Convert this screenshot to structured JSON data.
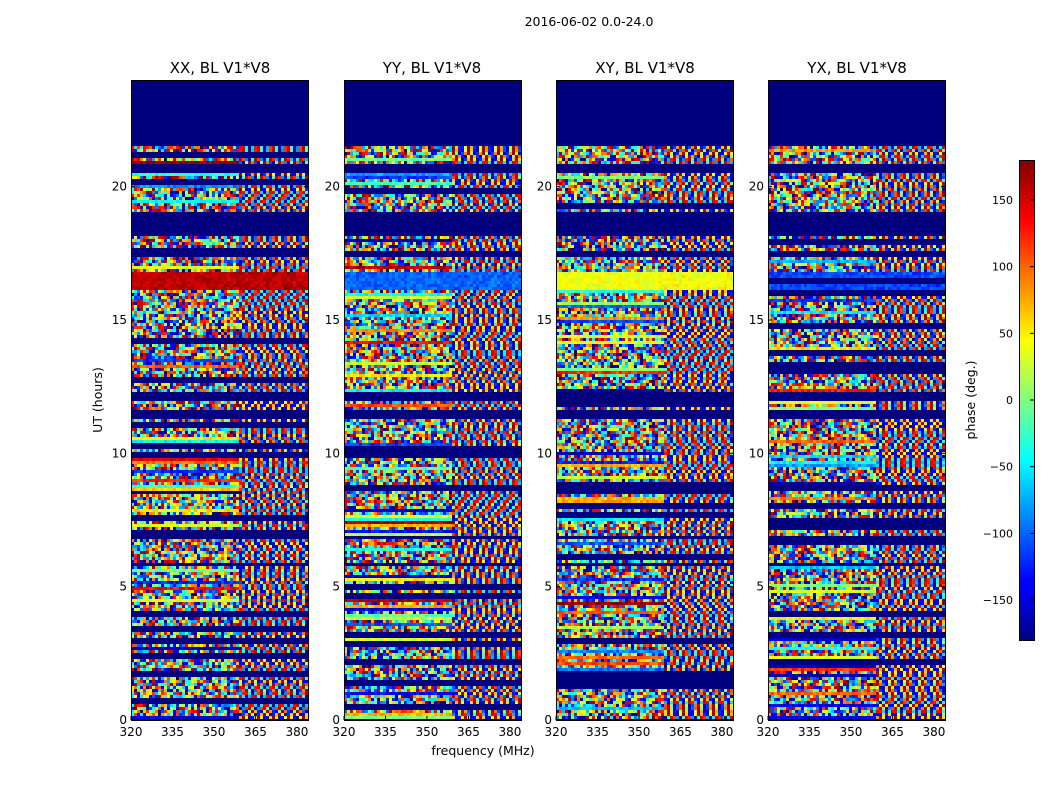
{
  "figure": {
    "suptitle": "2016-06-02 0.0-24.0"
  },
  "colors": {
    "no_data": "#00007f",
    "frame": "#000000",
    "colormap": "jet"
  },
  "chart_data": {
    "type": "heatmap",
    "shared": {
      "xlabel": "frequency (MHz)",
      "ylabel": "UT (hours)",
      "xlim": [
        320,
        384
      ],
      "ylim": [
        0,
        24
      ],
      "xticks": [
        320,
        335,
        350,
        365,
        380
      ],
      "yticks": [
        0,
        5,
        10,
        15,
        20
      ],
      "colorbar": {
        "label": "phase (deg.)",
        "range": [
          -180,
          180
        ],
        "ticks": [
          "150",
          "100",
          "50",
          "0",
          "−50",
          "−100",
          "−150"
        ],
        "tick_values": [
          150,
          100,
          50,
          0,
          -50,
          -100,
          -150
        ]
      },
      "no_data_intervals_ut": [
        [
          21.5,
          24.0
        ],
        [
          20.55,
          20.85
        ],
        [
          18.1,
          19.0
        ],
        [
          17.35,
          17.55
        ],
        [
          12.0,
          12.3
        ],
        [
          11.3,
          11.6
        ],
        [
          6.8,
          6.95
        ],
        [
          5.75,
          5.9
        ]
      ],
      "frequency_break_mhz": 359
    },
    "panels": [
      {
        "title": "XX, BL V1*V8",
        "feature_band_ut": [
          16.1,
          16.8
        ],
        "feature_phase_deg": 160
      },
      {
        "title": "YY, BL V1*V8",
        "feature_band_ut": [
          16.1,
          16.8
        ],
        "feature_phase_deg": -100
      },
      {
        "title": "XY, BL V1*V8",
        "feature_band_ut": [
          16.1,
          16.8
        ],
        "feature_phase_deg": 40
      },
      {
        "title": "YX, BL V1*V8",
        "feature_band_ut": [
          16.1,
          16.8
        ],
        "feature_phase_deg": -110
      }
    ]
  }
}
